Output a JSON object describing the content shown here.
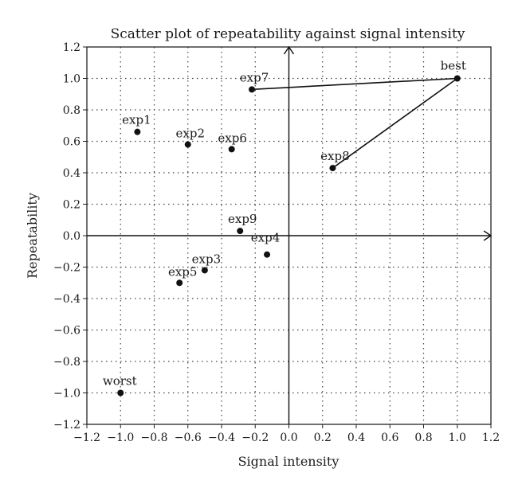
{
  "chart_data": {
    "type": "scatter",
    "title": "Scatter plot of repeatability against signal intensity",
    "xlabel": "Signal intensity",
    "ylabel": "Repeatability",
    "xlim": [
      -1.2,
      1.2
    ],
    "ylim": [
      -1.2,
      1.2
    ],
    "x_ticks": [
      -1.2,
      -1.0,
      -0.8,
      -0.6,
      -0.4,
      -0.2,
      0.0,
      0.2,
      0.4,
      0.6,
      0.8,
      1.0,
      1.2
    ],
    "y_ticks": [
      1.2,
      1.0,
      0.8,
      0.6,
      0.4,
      0.2,
      0.0,
      -0.2,
      -0.4,
      -0.6,
      -0.8,
      -1.0,
      -1.2
    ],
    "x_tick_labels": [
      "−1.2",
      "−1.0",
      "−0.8",
      "−0.6",
      "−0.4",
      "−0.2",
      "0.0",
      "0.2",
      "0.4",
      "0.6",
      "0.8",
      "1.0",
      "1.2"
    ],
    "y_tick_labels": [
      "1.2",
      "1.0",
      "0.8",
      "0.6",
      "0.4",
      "0.2",
      "0.0",
      "−0.2",
      "−0.4",
      "−0.6",
      "−0.8",
      "−1.0",
      "−1.2"
    ],
    "grid": true,
    "axes_through_origin": true,
    "points": [
      {
        "label": "exp1",
        "x": -0.9,
        "y": 0.66
      },
      {
        "label": "exp2",
        "x": -0.6,
        "y": 0.58
      },
      {
        "label": "exp3",
        "x": -0.5,
        "y": -0.22
      },
      {
        "label": "exp4",
        "x": -0.13,
        "y": -0.12
      },
      {
        "label": "exp5",
        "x": -0.65,
        "y": -0.3
      },
      {
        "label": "exp6",
        "x": -0.34,
        "y": 0.55
      },
      {
        "label": "exp7",
        "x": -0.22,
        "y": 0.93
      },
      {
        "label": "exp8",
        "x": 0.26,
        "y": 0.43
      },
      {
        "label": "exp9",
        "x": -0.29,
        "y": 0.03
      },
      {
        "label": "best",
        "x": 1.0,
        "y": 1.0
      },
      {
        "label": "worst",
        "x": -1.0,
        "y": -1.0
      }
    ],
    "connections": [
      {
        "from": "exp7",
        "to": "best"
      },
      {
        "from": "exp8",
        "to": "best"
      }
    ]
  }
}
